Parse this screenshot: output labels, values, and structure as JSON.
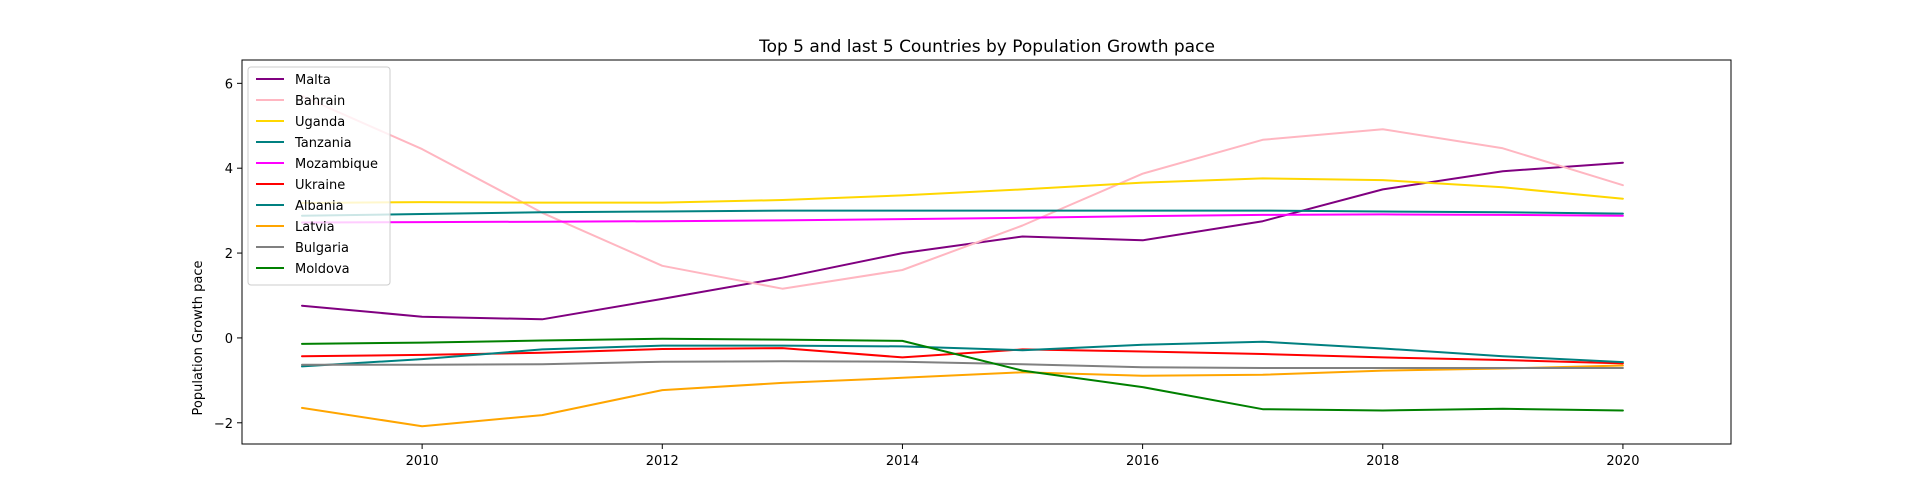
{
  "chart_data": {
    "type": "line",
    "title": "Top 5 and last 5 Countries by Population Growth pace",
    "xlabel": "",
    "ylabel": "Population Growth pace",
    "xlim": [
      2008.5,
      2020.9
    ],
    "ylim": [
      -2.5,
      6.55
    ],
    "x_ticks": [
      2010,
      2012,
      2014,
      2016,
      2018,
      2020
    ],
    "y_ticks": [
      -2,
      0,
      2,
      4,
      6
    ],
    "grid": false,
    "legend_position": "upper-left",
    "x": [
      2009,
      2010,
      2011,
      2012,
      2013,
      2014,
      2015,
      2016,
      2017,
      2018,
      2019,
      2020
    ],
    "series": [
      {
        "name": "Malta",
        "color": "#800080",
        "values": [
          0.76,
          0.5,
          0.44,
          0.92,
          1.42,
          2.0,
          2.39,
          2.3,
          2.75,
          3.5,
          3.93,
          4.13
        ]
      },
      {
        "name": "Bahrain",
        "color": "#FFB6C1",
        "values": [
          5.7,
          4.45,
          2.95,
          1.7,
          1.16,
          1.6,
          2.65,
          3.87,
          4.67,
          4.92,
          4.47,
          3.6
        ]
      },
      {
        "name": "Uganda",
        "color": "#FFD700",
        "values": [
          3.18,
          3.2,
          3.19,
          3.19,
          3.25,
          3.36,
          3.5,
          3.66,
          3.76,
          3.72,
          3.55,
          3.28
        ]
      },
      {
        "name": "Tanzania",
        "color": "#008080",
        "values": [
          2.88,
          2.92,
          2.96,
          2.98,
          3.0,
          3.0,
          3.0,
          3.0,
          3.0,
          2.98,
          2.96,
          2.93
        ]
      },
      {
        "name": "Mozambique",
        "color": "#FF00FF",
        "values": [
          2.72,
          2.73,
          2.74,
          2.75,
          2.77,
          2.8,
          2.83,
          2.87,
          2.9,
          2.91,
          2.9,
          2.88
        ]
      },
      {
        "name": "Ukraine",
        "color": "#FF0000",
        "values": [
          -0.43,
          -0.4,
          -0.35,
          -0.26,
          -0.24,
          -0.46,
          -0.27,
          -0.32,
          -0.38,
          -0.46,
          -0.52,
          -0.6
        ]
      },
      {
        "name": "Albania",
        "color": "#008080",
        "values": [
          -0.67,
          -0.5,
          -0.27,
          -0.18,
          -0.18,
          -0.2,
          -0.29,
          -0.16,
          -0.09,
          -0.25,
          -0.43,
          -0.57
        ]
      },
      {
        "name": "Latvia",
        "color": "#FFA500",
        "values": [
          -1.65,
          -2.08,
          -1.82,
          -1.23,
          -1.06,
          -0.94,
          -0.81,
          -0.89,
          -0.87,
          -0.77,
          -0.72,
          -0.65
        ]
      },
      {
        "name": "Bulgaria",
        "color": "#808080",
        "values": [
          -0.63,
          -0.63,
          -0.62,
          -0.56,
          -0.55,
          -0.56,
          -0.62,
          -0.69,
          -0.71,
          -0.71,
          -0.71,
          -0.71
        ]
      },
      {
        "name": "Moldova",
        "color": "#008000",
        "values": [
          -0.14,
          -0.11,
          -0.06,
          -0.02,
          -0.04,
          -0.07,
          -0.77,
          -1.16,
          -1.68,
          -1.71,
          -1.67,
          -1.71
        ]
      }
    ]
  }
}
